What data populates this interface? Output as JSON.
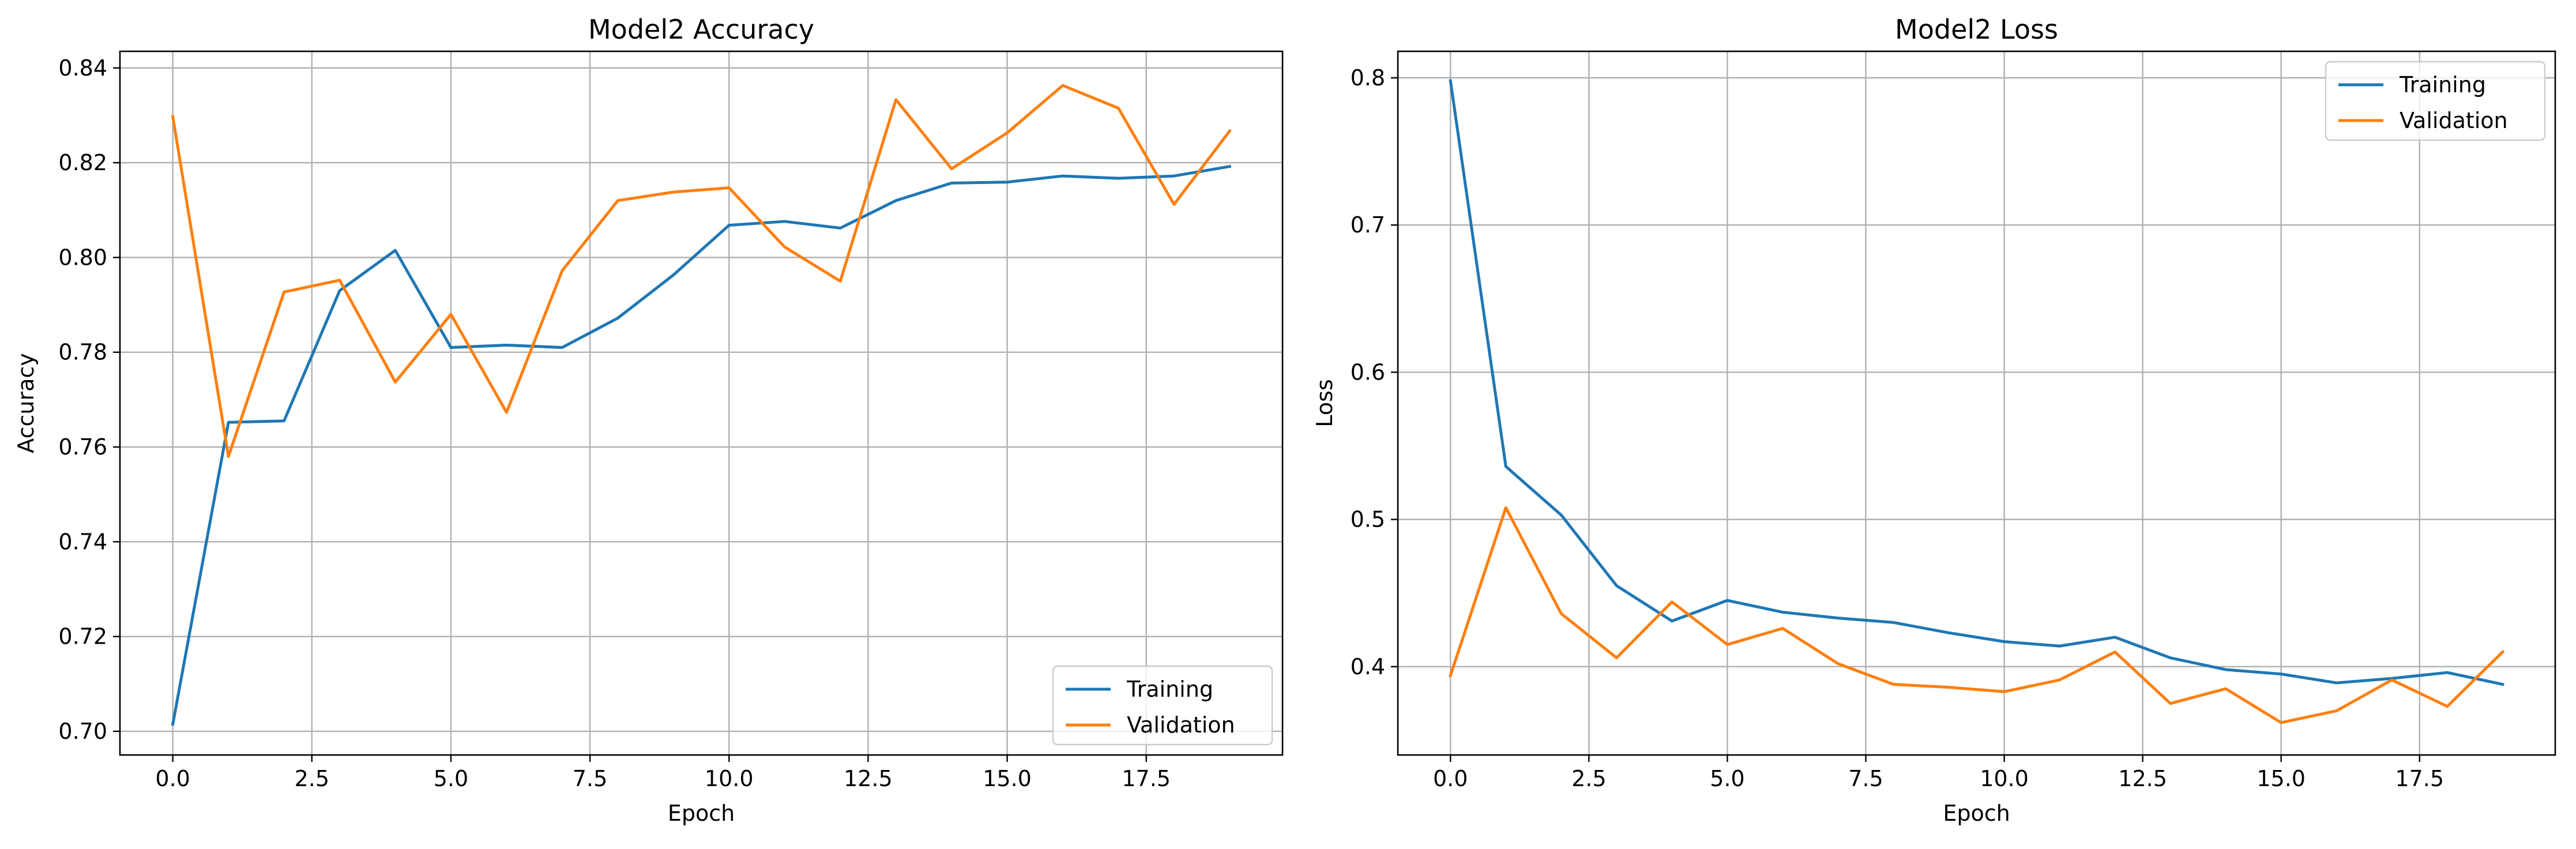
{
  "chart_data": [
    {
      "type": "line",
      "title": "Model2 Accuracy",
      "xlabel": "Epoch",
      "ylabel": "Accuracy",
      "xlim": [
        -0.95,
        19.95
      ],
      "ylim": [
        0.695,
        0.8435
      ],
      "xticks": [
        0.0,
        2.5,
        5.0,
        7.5,
        10.0,
        12.5,
        15.0,
        17.5
      ],
      "xtick_labels": [
        "0.0",
        "2.5",
        "5.0",
        "7.5",
        "10.0",
        "12.5",
        "15.0",
        "17.5"
      ],
      "yticks": [
        0.7,
        0.72,
        0.74,
        0.76,
        0.78,
        0.8,
        0.82,
        0.84
      ],
      "ytick_labels": [
        "0.70",
        "0.72",
        "0.74",
        "0.76",
        "0.78",
        "0.80",
        "0.82",
        "0.84"
      ],
      "grid": true,
      "legend_position": "lower-right",
      "x": [
        0,
        1,
        2,
        3,
        4,
        5,
        6,
        7,
        8,
        9,
        10,
        11,
        12,
        13,
        14,
        15,
        16,
        17,
        18,
        19
      ],
      "series": [
        {
          "name": "Training",
          "color": "#1f77b4",
          "values": [
            0.7015,
            0.7652,
            0.7655,
            0.793,
            0.8015,
            0.781,
            0.7815,
            0.781,
            0.7872,
            0.7963,
            0.8068,
            0.8076,
            0.8062,
            0.812,
            0.8157,
            0.8159,
            0.8172,
            0.8167,
            0.8172,
            0.8192
          ]
        },
        {
          "name": "Validation",
          "color": "#ff7f0e",
          "values": [
            0.8297,
            0.758,
            0.7927,
            0.7952,
            0.7737,
            0.788,
            0.7673,
            0.7972,
            0.812,
            0.8138,
            0.8147,
            0.8022,
            0.795,
            0.8333,
            0.8187,
            0.8263,
            0.8363,
            0.8315,
            0.8112,
            0.8267
          ]
        }
      ]
    },
    {
      "type": "line",
      "title": "Model2 Loss",
      "xlabel": "Epoch",
      "ylabel": "Loss",
      "xlim": [
        -0.95,
        19.95
      ],
      "ylim": [
        0.34,
        0.818
      ],
      "xticks": [
        0.0,
        2.5,
        5.0,
        7.5,
        10.0,
        12.5,
        15.0,
        17.5
      ],
      "xtick_labels": [
        "0.0",
        "2.5",
        "5.0",
        "7.5",
        "10.0",
        "12.5",
        "15.0",
        "17.5"
      ],
      "yticks": [
        0.4,
        0.5,
        0.6,
        0.7,
        0.8
      ],
      "ytick_labels": [
        "0.4",
        "0.5",
        "0.6",
        "0.7",
        "0.8"
      ],
      "grid": true,
      "legend_position": "upper-right",
      "x": [
        0,
        1,
        2,
        3,
        4,
        5,
        6,
        7,
        8,
        9,
        10,
        11,
        12,
        13,
        14,
        15,
        16,
        17,
        18,
        19
      ],
      "series": [
        {
          "name": "Training",
          "color": "#1f77b4",
          "values": [
            0.798,
            0.536,
            0.503,
            0.455,
            0.431,
            0.445,
            0.437,
            0.433,
            0.43,
            0.423,
            0.417,
            0.414,
            0.42,
            0.406,
            0.398,
            0.395,
            0.389,
            0.392,
            0.396,
            0.388
          ]
        },
        {
          "name": "Validation",
          "color": "#ff7f0e",
          "values": [
            0.394,
            0.508,
            0.436,
            0.406,
            0.444,
            0.415,
            0.426,
            0.402,
            0.388,
            0.386,
            0.383,
            0.391,
            0.41,
            0.375,
            0.385,
            0.362,
            0.37,
            0.391,
            0.373,
            0.41
          ]
        }
      ]
    }
  ]
}
